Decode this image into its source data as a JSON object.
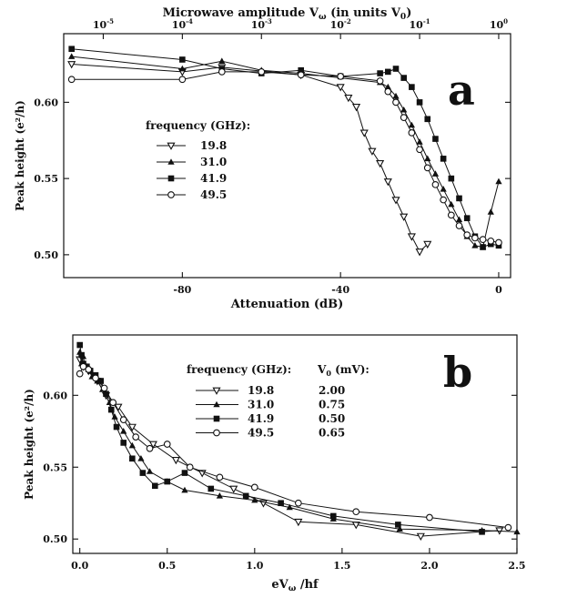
{
  "chart_data": [
    {
      "type": "line",
      "panel_label": "a",
      "xlabel": "Attenuation (dB)",
      "ylabel": "Peak height (e²/h)",
      "top_xlabel": "Microwave amplitude V",
      "top_xlabel_sub": "ω",
      "top_xlabel_suffix": " (in units V",
      "top_xlabel_sub2": "0",
      "top_xlabel_end": ")",
      "xlim": [
        -110,
        3
      ],
      "ylim": [
        0.485,
        0.645
      ],
      "x_ticks": [
        -80,
        -40,
        0
      ],
      "x_tick_labels": [
        "-80",
        "-40",
        "0"
      ],
      "y_ticks": [
        0.5,
        0.55,
        0.6
      ],
      "y_tick_labels": [
        "0.50",
        "0.55",
        "0.60"
      ],
      "top_ticks": [
        -100,
        -80,
        -60,
        -40,
        -20,
        0
      ],
      "top_tick_mantissa": [
        "10",
        "10",
        "10",
        "10",
        "10",
        "10"
      ],
      "top_tick_exponents": [
        "-5",
        "-4",
        "-3",
        "-2",
        "-1",
        "0"
      ],
      "legend_title": "frequency (GHz):",
      "legend_position": "middle-left",
      "grid": false,
      "series": [
        {
          "name": "19.8",
          "marker": "triangle-down-open",
          "x": [
            -108,
            -80,
            -70,
            -50,
            -40,
            -38,
            -36,
            -34,
            -32,
            -30,
            -28,
            -26,
            -24,
            -22,
            -20,
            -18
          ],
          "y": [
            0.625,
            0.62,
            0.623,
            0.618,
            0.61,
            0.603,
            0.597,
            0.58,
            0.568,
            0.56,
            0.548,
            0.536,
            0.525,
            0.512,
            0.502,
            0.507
          ]
        },
        {
          "name": "31.0",
          "marker": "triangle-up-filled",
          "x": [
            -108,
            -80,
            -70,
            -60,
            -50,
            -30,
            -28,
            -26,
            -24,
            -22,
            -20,
            -18,
            -16,
            -14,
            -12,
            -10,
            -8,
            -6,
            -4,
            -2,
            0
          ],
          "y": [
            0.63,
            0.622,
            0.627,
            0.621,
            0.619,
            0.613,
            0.61,
            0.604,
            0.595,
            0.585,
            0.574,
            0.563,
            0.553,
            0.543,
            0.533,
            0.523,
            0.512,
            0.506,
            0.505,
            0.528,
            0.548
          ]
        },
        {
          "name": "41.9",
          "marker": "square-filled",
          "x": [
            -108,
            -80,
            -70,
            -60,
            -50,
            -40,
            -30,
            -28,
            -26,
            -24,
            -22,
            -20,
            -18,
            -16,
            -14,
            -12,
            -10,
            -8,
            -6,
            -4,
            -2,
            0
          ],
          "y": [
            0.635,
            0.628,
            0.622,
            0.619,
            0.621,
            0.617,
            0.619,
            0.62,
            0.622,
            0.616,
            0.61,
            0.6,
            0.589,
            0.576,
            0.563,
            0.55,
            0.537,
            0.524,
            0.512,
            0.505,
            0.507,
            0.506
          ]
        },
        {
          "name": "49.5",
          "marker": "circle-open",
          "x": [
            -108,
            -80,
            -70,
            -60,
            -50,
            -40,
            -30,
            -28,
            -26,
            -24,
            -22,
            -20,
            -18,
            -16,
            -14,
            -12,
            -10,
            -8,
            -6,
            -4,
            -2,
            0
          ],
          "y": [
            0.615,
            0.615,
            0.62,
            0.62,
            0.618,
            0.617,
            0.614,
            0.607,
            0.6,
            0.59,
            0.58,
            0.569,
            0.557,
            0.546,
            0.536,
            0.526,
            0.519,
            0.513,
            0.511,
            0.51,
            0.509,
            0.508
          ]
        }
      ]
    },
    {
      "type": "line",
      "panel_label": "b",
      "xlabel": "eV",
      "xlabel_sub": "ω",
      "xlabel_suffix": " /hf",
      "ylabel": "Peak height (e²/h)",
      "xlim": [
        -0.04,
        2.5
      ],
      "ylim": [
        0.49,
        0.642
      ],
      "x_ticks": [
        0.0,
        0.5,
        1.0,
        1.5,
        2.0,
        2.5
      ],
      "x_tick_labels": [
        "0.0",
        "0.5",
        "1.0",
        "1.5",
        "2.0",
        "2.5"
      ],
      "y_ticks": [
        0.5,
        0.55,
        0.6
      ],
      "y_tick_labels": [
        "0.50",
        "0.55",
        "0.60"
      ],
      "legend_title": "frequency (GHz):",
      "legend_title2": "V",
      "legend_title2_sub": "0",
      "legend_title2_suffix": " (mV):",
      "legend_position": "upper-middle",
      "grid": false,
      "series": [
        {
          "name": "19.8",
          "v0": "2.00",
          "marker": "triangle-down-open",
          "x": [
            0.0,
            0.02,
            0.05,
            0.1,
            0.15,
            0.22,
            0.3,
            0.42,
            0.55,
            0.7,
            0.88,
            1.05,
            1.25,
            1.58,
            1.95,
            2.4
          ],
          "y": [
            0.625,
            0.62,
            0.617,
            0.61,
            0.6,
            0.592,
            0.578,
            0.566,
            0.555,
            0.546,
            0.535,
            0.525,
            0.512,
            0.51,
            0.502,
            0.506
          ]
        },
        {
          "name": "31.0",
          "v0": "0.75",
          "marker": "triangle-up-filled",
          "x": [
            0.0,
            0.01,
            0.02,
            0.03,
            0.05,
            0.07,
            0.1,
            0.13,
            0.17,
            0.2,
            0.25,
            0.3,
            0.35,
            0.4,
            0.5,
            0.6,
            0.8,
            1.0,
            1.2,
            1.45,
            1.83,
            2.3,
            2.5
          ],
          "y": [
            0.63,
            0.622,
            0.627,
            0.62,
            0.618,
            0.613,
            0.61,
            0.604,
            0.595,
            0.585,
            0.575,
            0.565,
            0.556,
            0.547,
            0.54,
            0.534,
            0.53,
            0.527,
            0.522,
            0.514,
            0.507,
            0.506,
            0.505
          ]
        },
        {
          "name": "41.9",
          "v0": "0.50",
          "marker": "square-filled",
          "x": [
            0.0,
            0.01,
            0.02,
            0.04,
            0.06,
            0.09,
            0.12,
            0.15,
            0.18,
            0.21,
            0.25,
            0.3,
            0.36,
            0.43,
            0.5,
            0.6,
            0.75,
            0.95,
            1.15,
            1.45,
            1.82,
            2.3
          ],
          "y": [
            0.635,
            0.628,
            0.622,
            0.62,
            0.617,
            0.614,
            0.61,
            0.601,
            0.59,
            0.578,
            0.567,
            0.556,
            0.546,
            0.537,
            0.54,
            0.546,
            0.535,
            0.53,
            0.525,
            0.516,
            0.51,
            0.505
          ]
        },
        {
          "name": "49.5",
          "v0": "0.65",
          "marker": "circle-open",
          "x": [
            0.0,
            0.02,
            0.05,
            0.09,
            0.14,
            0.19,
            0.25,
            0.32,
            0.4,
            0.5,
            0.63,
            0.8,
            1.0,
            1.25,
            1.58,
            2.0,
            2.45
          ],
          "y": [
            0.615,
            0.62,
            0.618,
            0.612,
            0.605,
            0.595,
            0.583,
            0.571,
            0.563,
            0.566,
            0.55,
            0.543,
            0.536,
            0.525,
            0.519,
            0.515,
            0.508
          ]
        }
      ]
    }
  ]
}
